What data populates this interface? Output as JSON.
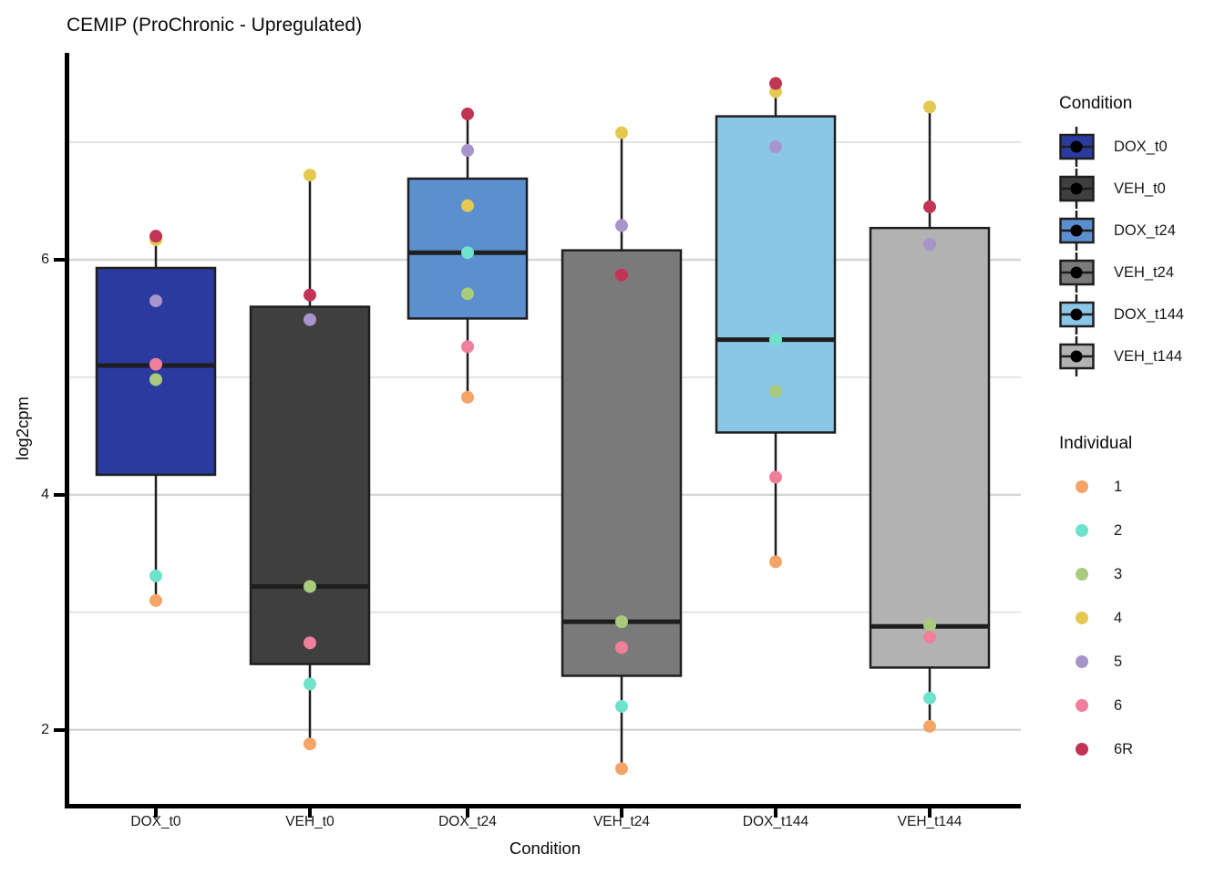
{
  "chart": {
    "title": "CEMIP (ProChronic - Upregulated)",
    "xlabel": "Condition",
    "ylabel": "log2cpm"
  },
  "chart_data": {
    "type": "boxplot",
    "title": "CEMIP (ProChronic - Upregulated)",
    "xlabel": "Condition",
    "ylabel": "log2cpm",
    "y_ticks": [
      2,
      4,
      6
    ],
    "y_minor_gridlines": [
      3,
      5,
      7
    ],
    "ylim": [
      1.37,
      7.76
    ],
    "grid": "horizontal major and minor gridlines, white background",
    "legend_position": "right",
    "categories": [
      "DOX_t0",
      "VEH_t0",
      "DOX_t24",
      "VEH_t24",
      "DOX_t144",
      "VEH_t144"
    ],
    "individual_order": [
      "1",
      "2",
      "3",
      "4",
      "5",
      "6",
      "6R"
    ],
    "individual_colors": {
      "1": "#F4A467",
      "2": "#6FE2CC",
      "3": "#A9CB7C",
      "4": "#E4C951",
      "5": "#A894CA",
      "6": "#EF7F9B",
      "6R": "#C23456"
    },
    "boxes": [
      {
        "condition": "DOX_t0",
        "fill": "#2B3A9F",
        "whisker_low": 3.1,
        "q1": 4.17,
        "median": 5.1,
        "q3": 5.93,
        "whisker_high": 6.2,
        "points": {
          "1": 3.1,
          "2": 3.31,
          "3": 4.98,
          "4": 6.17,
          "5": 5.65,
          "6": 5.11,
          "6R": 6.2
        }
      },
      {
        "condition": "VEH_t0",
        "fill": "#3F3F3F",
        "whisker_low": 1.88,
        "q1": 2.56,
        "median": 3.22,
        "q3": 5.6,
        "whisker_high": 6.72,
        "points": {
          "1": 1.88,
          "2": 2.39,
          "3": 3.22,
          "4": 6.72,
          "5": 5.49,
          "6": 2.74,
          "6R": 5.7
        }
      },
      {
        "condition": "DOX_t24",
        "fill": "#5B8FD0",
        "whisker_low": 4.83,
        "q1": 5.5,
        "median": 6.06,
        "q3": 6.69,
        "whisker_high": 7.24,
        "points": {
          "1": 4.83,
          "2": 6.06,
          "3": 5.71,
          "4": 6.46,
          "5": 6.93,
          "6": 5.26,
          "6R": 7.24
        }
      },
      {
        "condition": "VEH_t24",
        "fill": "#7A7A7A",
        "whisker_low": 1.67,
        "q1": 2.46,
        "median": 2.92,
        "q3": 6.08,
        "whisker_high": 7.08,
        "points": {
          "1": 1.67,
          "2": 2.2,
          "3": 2.92,
          "4": 7.08,
          "5": 6.29,
          "6": 2.7,
          "6R": 5.87
        }
      },
      {
        "condition": "DOX_t144",
        "fill": "#8AC7E6",
        "whisker_low": 3.43,
        "q1": 4.53,
        "median": 5.32,
        "q3": 7.22,
        "whisker_high": 7.5,
        "points": {
          "1": 3.43,
          "2": 5.32,
          "3": 4.88,
          "4": 7.43,
          "5": 6.96,
          "6": 4.15,
          "6R": 7.5
        }
      },
      {
        "condition": "VEH_t144",
        "fill": "#B2B2B2",
        "whisker_low": 2.03,
        "q1": 2.53,
        "median": 2.88,
        "q3": 6.27,
        "whisker_high": 7.3,
        "points": {
          "1": 2.03,
          "2": 2.27,
          "3": 2.89,
          "4": 7.3,
          "5": 6.13,
          "6": 2.79,
          "6R": 6.45
        }
      }
    ]
  },
  "legend_condition": {
    "title": "Condition",
    "items": [
      {
        "label": "DOX_t0",
        "fill": "#2B3A9F"
      },
      {
        "label": "VEH_t0",
        "fill": "#3F3F3F"
      },
      {
        "label": "DOX_t24",
        "fill": "#5B8FD0"
      },
      {
        "label": "VEH_t24",
        "fill": "#7A7A7A"
      },
      {
        "label": "DOX_t144",
        "fill": "#8AC7E6"
      },
      {
        "label": "VEH_t144",
        "fill": "#B2B2B2"
      }
    ]
  },
  "legend_individual": {
    "title": "Individual",
    "items": [
      {
        "label": "1",
        "color": "#F4A467"
      },
      {
        "label": "2",
        "color": "#6FE2CC"
      },
      {
        "label": "3",
        "color": "#A9CB7C"
      },
      {
        "label": "4",
        "color": "#E4C951"
      },
      {
        "label": "5",
        "color": "#A894CA"
      },
      {
        "label": "6",
        "color": "#EF7F9B"
      },
      {
        "label": "6R",
        "color": "#C23456"
      }
    ]
  },
  "colors": {
    "box_border": "#1E1E1E",
    "major_grid": "#D6D6D6",
    "minor_grid": "#E4E4E4",
    "axis": "#000000"
  }
}
